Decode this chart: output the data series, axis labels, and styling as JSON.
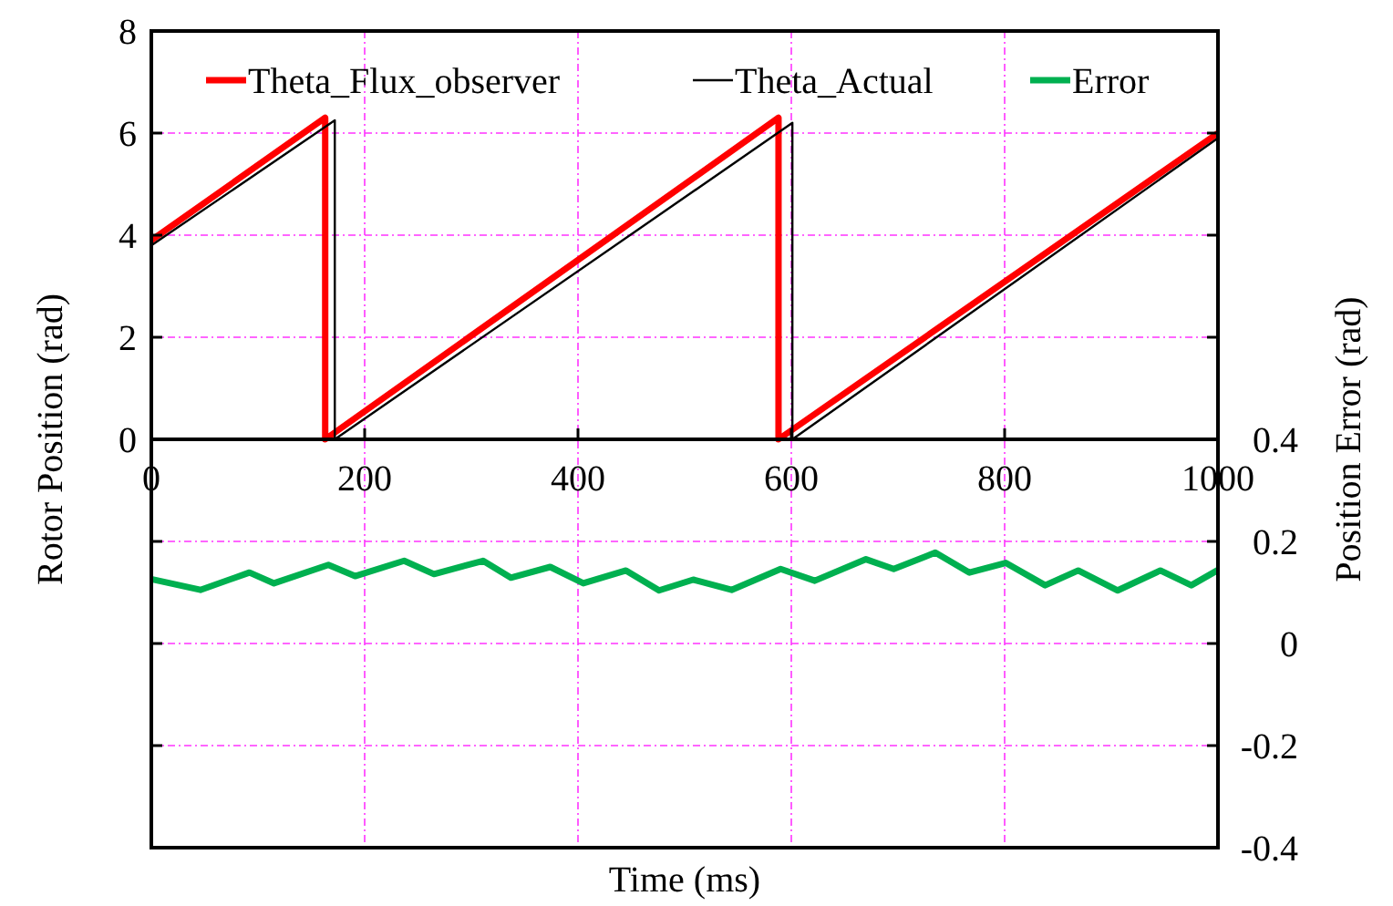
{
  "chart_data": {
    "type": "line",
    "xlabel": "Time (ms)",
    "ylabel": "Rotor Position (rad)",
    "y2label": "Position Error (rad)",
    "xlim": [
      0,
      1000
    ],
    "xticks": [
      0,
      200,
      400,
      600,
      800,
      1000
    ],
    "ylim": [
      -8,
      8
    ],
    "yticks": [
      {
        "value": -8,
        "label": null
      },
      {
        "value": -6,
        "label": null
      },
      {
        "value": -4,
        "label": null
      },
      {
        "value": -2,
        "label": null
      },
      0,
      2,
      4,
      6,
      8
    ],
    "y2lim": [
      -0.4,
      1.2
    ],
    "y2ticks": [
      -0.4,
      -0.2,
      0,
      0.2,
      0.4,
      {
        "value": 0.6,
        "label": null
      },
      {
        "value": 0.8,
        "label": null
      },
      {
        "value": 1.0,
        "label": null
      }
    ],
    "grid": true,
    "legend": "top",
    "series": [
      {
        "name": "Theta_Flux_observer",
        "color": "#ff0000",
        "x": [
          0,
          163,
          163,
          588,
          588,
          1000
        ],
        "values": [
          3.9,
          6.3,
          0,
          6.3,
          0,
          6.0
        ]
      },
      {
        "name": "Theta_Actual",
        "color": "#000000",
        "x": [
          0,
          172,
          172,
          601,
          601,
          1000
        ],
        "values": [
          3.8,
          6.25,
          0,
          6.2,
          0,
          5.9
        ]
      },
      {
        "name": "Error",
        "color": "#00b050",
        "axis": "y2",
        "x": [
          0,
          46,
          92,
          115,
          166,
          191,
          237,
          265,
          311,
          337,
          374,
          405,
          445,
          476,
          508,
          544,
          590,
          622,
          670,
          696,
          735,
          767,
          801,
          838,
          869,
          906,
          946,
          975,
          1000
        ],
        "values": [
          0.126,
          0.105,
          0.139,
          0.118,
          0.154,
          0.132,
          0.162,
          0.136,
          0.162,
          0.129,
          0.15,
          0.118,
          0.143,
          0.104,
          0.125,
          0.105,
          0.146,
          0.123,
          0.165,
          0.146,
          0.178,
          0.139,
          0.158,
          0.114,
          0.143,
          0.104,
          0.143,
          0.114,
          0.144
        ]
      }
    ]
  }
}
